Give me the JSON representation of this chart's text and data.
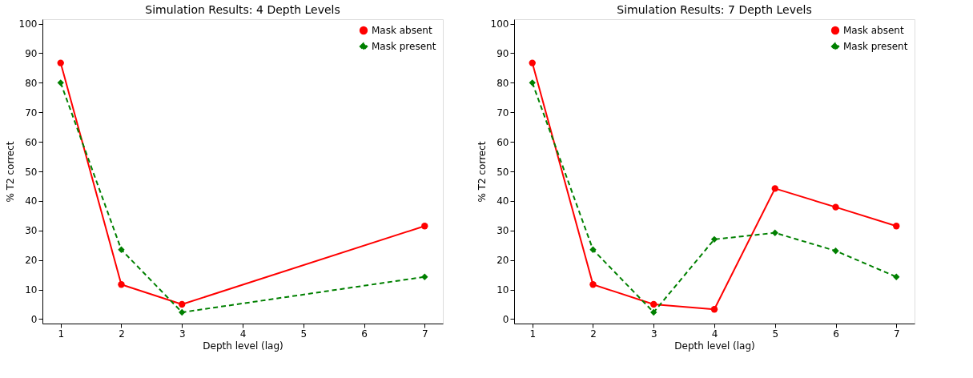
{
  "chart_data": [
    {
      "type": "line",
      "title": "Simulation Results: 4 Depth Levels",
      "xlabel": "Depth level (lag)",
      "ylabel": "% T2 correct",
      "x": [
        1,
        2,
        3,
        7
      ],
      "xlim": [
        0.7,
        7.3
      ],
      "xticks": [
        1,
        2,
        3,
        4,
        5,
        6,
        7
      ],
      "ylim": [
        -1.5,
        101.5
      ],
      "yticks": [
        0,
        10,
        20,
        30,
        40,
        50,
        60,
        70,
        80,
        90,
        100
      ],
      "grid": false,
      "legend": "top right",
      "series": [
        {
          "name": "Mask absent",
          "color": "#ff0000",
          "marker": "circle",
          "line_style": "solid",
          "values": [
            86.7,
            11.7,
            5.0,
            31.5
          ]
        },
        {
          "name": "Mask present",
          "color": "#008000",
          "marker": "diamond",
          "line_style": "dashed",
          "values": [
            80.0,
            23.5,
            2.3,
            14.3
          ]
        }
      ]
    },
    {
      "type": "line",
      "title": "Simulation Results: 7 Depth Levels",
      "xlabel": "Depth level (lag)",
      "ylabel": "% T2 correct",
      "x": [
        1,
        2,
        3,
        4,
        5,
        6,
        7
      ],
      "xlim": [
        0.7,
        7.3
      ],
      "xticks": [
        1,
        2,
        3,
        4,
        5,
        6,
        7
      ],
      "ylim": [
        -1.5,
        101.5
      ],
      "yticks": [
        0,
        10,
        20,
        30,
        40,
        50,
        60,
        70,
        80,
        90,
        100
      ],
      "grid": false,
      "legend": "top right",
      "series": [
        {
          "name": "Mask absent",
          "color": "#ff0000",
          "marker": "circle",
          "line_style": "solid",
          "values": [
            86.7,
            11.7,
            5.0,
            3.3,
            44.2,
            37.9,
            31.5
          ]
        },
        {
          "name": "Mask present",
          "color": "#008000",
          "marker": "diamond",
          "line_style": "dashed",
          "values": [
            80.0,
            23.5,
            2.3,
            27.0,
            29.2,
            23.1,
            14.3
          ]
        }
      ]
    }
  ]
}
